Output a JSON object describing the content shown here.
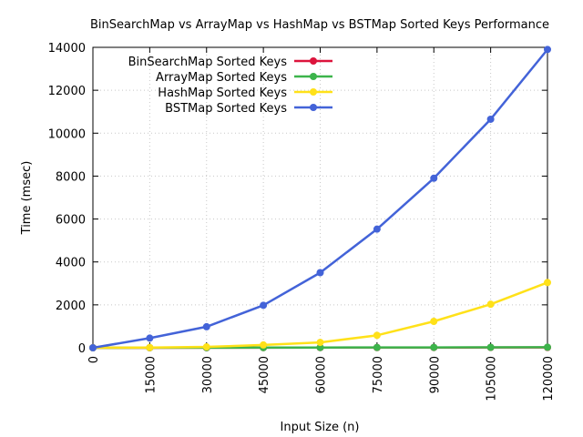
{
  "chart_data": {
    "type": "line",
    "title": "BinSearchMap vs ArrayMap vs HashMap vs BSTMap Sorted Keys Performance",
    "xlabel": "Input Size (n)",
    "ylabel": "Time (msec)",
    "x": [
      0,
      15000,
      30000,
      45000,
      60000,
      75000,
      90000,
      105000,
      120000
    ],
    "xlim": [
      0,
      120000
    ],
    "ylim": [
      0,
      14000
    ],
    "yticks": [
      0,
      2000,
      4000,
      6000,
      8000,
      10000,
      12000,
      14000
    ],
    "grid": true,
    "legend_position": "top-left",
    "series": [
      {
        "name": "BinSearchMap Sorted Keys",
        "color": "#dc143c",
        "values": [
          0,
          2,
          4,
          6,
          8,
          10,
          12,
          14,
          16
        ]
      },
      {
        "name": "ArrayMap Sorted Keys",
        "color": "#3cb44b",
        "values": [
          0,
          3,
          6,
          9,
          12,
          15,
          18,
          21,
          24
        ]
      },
      {
        "name": "HashMap Sorted Keys",
        "color": "#ffe119",
        "values": [
          0,
          10,
          40,
          130,
          250,
          580,
          1230,
          2030,
          3040
        ]
      },
      {
        "name": "BSTMap Sorted Keys",
        "color": "#4363d8",
        "values": [
          0,
          450,
          980,
          1980,
          3500,
          5530,
          7900,
          10650,
          13900
        ]
      }
    ]
  }
}
